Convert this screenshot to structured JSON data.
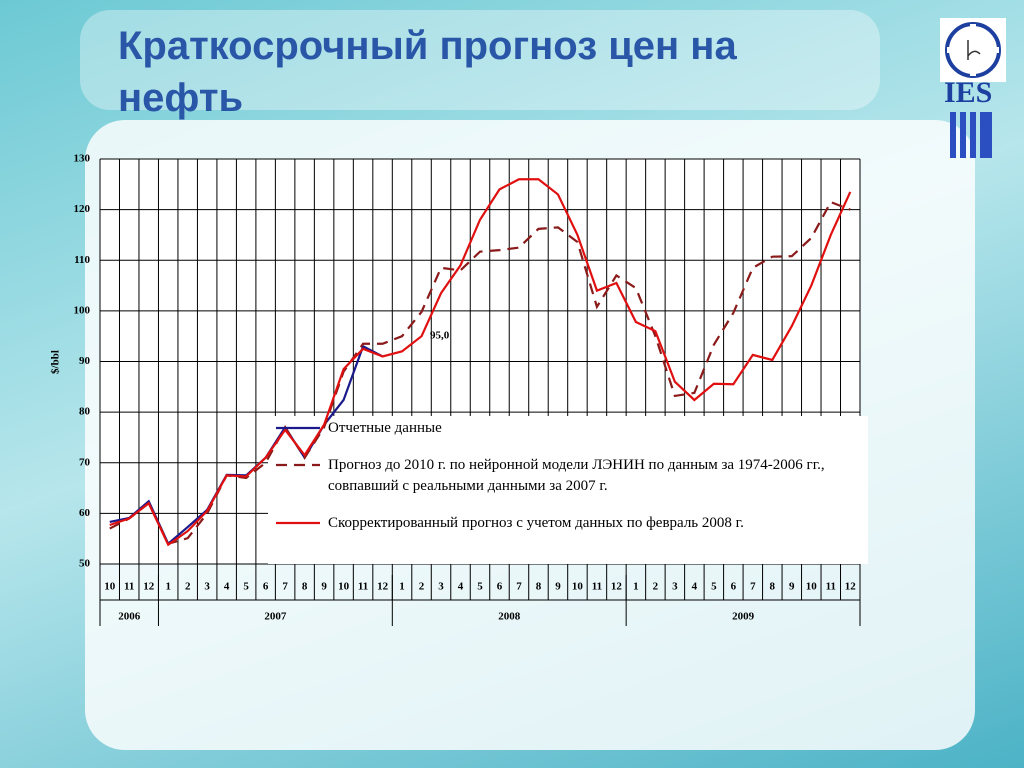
{
  "title": "Краткосрочный прогноз цен на нефть",
  "logo": "IES",
  "chart_data": {
    "type": "line",
    "y_label": "$/bbl",
    "annotation": "95,0",
    "categories": [
      "10",
      "11",
      "12",
      "1",
      "2",
      "3",
      "4",
      "5",
      "6",
      "7",
      "8",
      "9",
      "10",
      "11",
      "12",
      "1",
      "2",
      "3",
      "4",
      "5",
      "6",
      "7",
      "8",
      "9",
      "10",
      "11",
      "12",
      "1",
      "2",
      "3",
      "4",
      "5",
      "6",
      "7",
      "8",
      "9",
      "10",
      "11",
      "12"
    ],
    "years": [
      "2006",
      "2007",
      "2008",
      "2009"
    ],
    "ylim": [
      50,
      130
    ],
    "yticks": [
      50,
      60,
      70,
      80,
      90,
      100,
      110,
      120,
      130
    ],
    "grid": true,
    "series": [
      {
        "name": "Отчетные данные",
        "color": "#1a1a8c",
        "style": "solid",
        "values": [
          58.3,
          59.1,
          62.4,
          54,
          57.3,
          60.7,
          67.6,
          67.5,
          71,
          77,
          71,
          77.5,
          82.4,
          93,
          91,
          null,
          null,
          null,
          null,
          null,
          null,
          null,
          null,
          null,
          null,
          null,
          null,
          null,
          null,
          null,
          null,
          null,
          null,
          null,
          null,
          null,
          null,
          null,
          null
        ]
      },
      {
        "name": "Прогноз до 2010 г. по нейронной модели ЛЭНИН по данным за 1974-2006 гг., совпавший с реальными данными за 2007 г.",
        "color": "#8b1a1a",
        "style": "dashed",
        "values": [
          57,
          59,
          62,
          54,
          55.1,
          60,
          67.5,
          67,
          70,
          77,
          71,
          77,
          88,
          93.5,
          93.5,
          95,
          99.8,
          108.5,
          108,
          111.7,
          112,
          112.5,
          116.2,
          116.5,
          113.6,
          100.8,
          107,
          104.5,
          95,
          83.2,
          83.8,
          93.3,
          99.6,
          108.5,
          110.7,
          110.8,
          114.4,
          121.5,
          120
        ]
      },
      {
        "name": "Скорректированный прогноз с учетом данных по февраль 2008 г.",
        "color": "#e01010",
        "style": "solid",
        "values": [
          57.7,
          59,
          62,
          53.8,
          56.5,
          60.5,
          67.5,
          67.3,
          71,
          76.5,
          71.5,
          77.5,
          88.5,
          92.5,
          91,
          92,
          95,
          103.5,
          109,
          118,
          124,
          126,
          126,
          123,
          115,
          104,
          105.5,
          97.8,
          96,
          86,
          82.4,
          85.6,
          85.5,
          91.3,
          90.3,
          97,
          105,
          115,
          123.5
        ]
      }
    ]
  }
}
